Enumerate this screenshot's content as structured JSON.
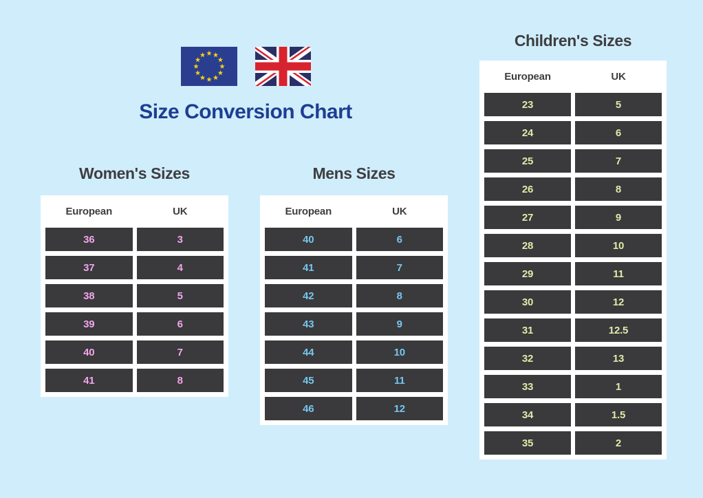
{
  "page": {
    "title": "Size Conversion Chart"
  },
  "icons": {
    "eu_flag": "eu-flag",
    "uk_flag": "uk-flag"
  },
  "colors": {
    "background": "#d0edfb",
    "panel": "#ffffff",
    "cell_background": "#3a393b",
    "header_text": "#3e3e40",
    "title_blue": "#1d3e92",
    "womens_value": "#f0a6ec",
    "mens_value": "#76c7ef",
    "childrens_value": "#dcecaa"
  },
  "chart_data": [
    {
      "type": "table",
      "title": "Women's Sizes",
      "columns": [
        "European",
        "UK"
      ],
      "value_color": "#f0a6ec",
      "rows": [
        [
          "36",
          "3"
        ],
        [
          "37",
          "4"
        ],
        [
          "38",
          "5"
        ],
        [
          "39",
          "6"
        ],
        [
          "40",
          "7"
        ],
        [
          "41",
          "8"
        ]
      ]
    },
    {
      "type": "table",
      "title": "Mens Sizes",
      "columns": [
        "European",
        "UK"
      ],
      "value_color": "#76c7ef",
      "rows": [
        [
          "40",
          "6"
        ],
        [
          "41",
          "7"
        ],
        [
          "42",
          "8"
        ],
        [
          "43",
          "9"
        ],
        [
          "44",
          "10"
        ],
        [
          "45",
          "11"
        ],
        [
          "46",
          "12"
        ]
      ]
    },
    {
      "type": "table",
      "title": "Children's Sizes",
      "columns": [
        "European",
        "UK"
      ],
      "value_color": "#dcecaa",
      "rows": [
        [
          "23",
          "5"
        ],
        [
          "24",
          "6"
        ],
        [
          "25",
          "7"
        ],
        [
          "26",
          "8"
        ],
        [
          "27",
          "9"
        ],
        [
          "28",
          "10"
        ],
        [
          "29",
          "11"
        ],
        [
          "30",
          "12"
        ],
        [
          "31",
          "12.5"
        ],
        [
          "32",
          "13"
        ],
        [
          "33",
          "1"
        ],
        [
          "34",
          "1.5"
        ],
        [
          "35",
          "2"
        ]
      ]
    }
  ]
}
